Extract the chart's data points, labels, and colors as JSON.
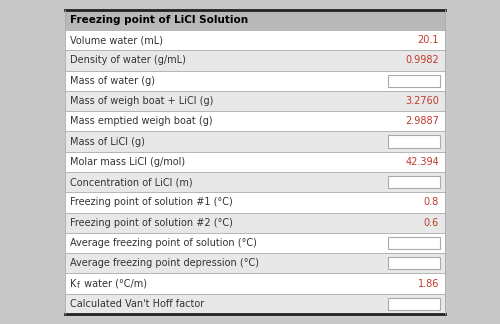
{
  "title": "Freezing point of LiCl Solution",
  "rows": [
    {
      "label": "Volume water (mL)",
      "value": "20.1",
      "value_color": "#c0392b",
      "bg": "#ffffff",
      "input_box": false
    },
    {
      "label": "Density of water (g/mL)",
      "value": "0.9982",
      "value_color": "#c0392b",
      "bg": "#e8e8e8",
      "input_box": false
    },
    {
      "label": "Mass of water (g)",
      "value": "",
      "value_color": "#c0392b",
      "bg": "#ffffff",
      "input_box": true
    },
    {
      "label": "Mass of weigh boat + LiCl (g)",
      "value": "3.2760",
      "value_color": "#c0392b",
      "bg": "#e8e8e8",
      "input_box": false
    },
    {
      "label": "Mass emptied weigh boat (g)",
      "value": "2.9887",
      "value_color": "#c0392b",
      "bg": "#ffffff",
      "input_box": false
    },
    {
      "label": "Mass of LiCl (g)",
      "value": "",
      "value_color": "#c0392b",
      "bg": "#e8e8e8",
      "input_box": true
    },
    {
      "label": "Molar mass LiCl (g/mol)",
      "value": "42.394",
      "value_color": "#c0392b",
      "bg": "#ffffff",
      "input_box": false
    },
    {
      "label": "Concentration of LiCl (m)",
      "value": "",
      "value_color": "#c0392b",
      "bg": "#e8e8e8",
      "input_box": true
    },
    {
      "label": "Freezing point of solution #1 (°C)",
      "value": "0.8",
      "value_color": "#c0392b",
      "bg": "#ffffff",
      "input_box": false
    },
    {
      "label": "Freezing point of solution #2 (°C)",
      "value": "0.6",
      "value_color": "#c0392b",
      "bg": "#e8e8e8",
      "input_box": false
    },
    {
      "label": "Average freezing point of solution (°C)",
      "value": "",
      "value_color": "#c0392b",
      "bg": "#ffffff",
      "input_box": true
    },
    {
      "label": "Average freezing point depression (°C)",
      "value": "",
      "value_color": "#c0392b",
      "bg": "#e8e8e8",
      "input_box": true
    },
    {
      "label": "Kf water (°C/m)",
      "value": "1.86",
      "value_color": "#c0392b",
      "bg": "#ffffff",
      "input_box": false
    },
    {
      "label": "Calculated Van't Hoff factor",
      "value": "",
      "value_color": "#c0392b",
      "bg": "#e8e8e8",
      "input_box": true
    }
  ],
  "header_bg": "#b8b8b8",
  "header_text_color": "#000000",
  "border_color_thick": "#222222",
  "border_color_thin": "#aaaaaa",
  "label_color": "#333333",
  "fig_bg": "#c8c8c8",
  "title_fontsize": 7.5,
  "row_fontsize": 7.0,
  "kf_row_index": 12
}
